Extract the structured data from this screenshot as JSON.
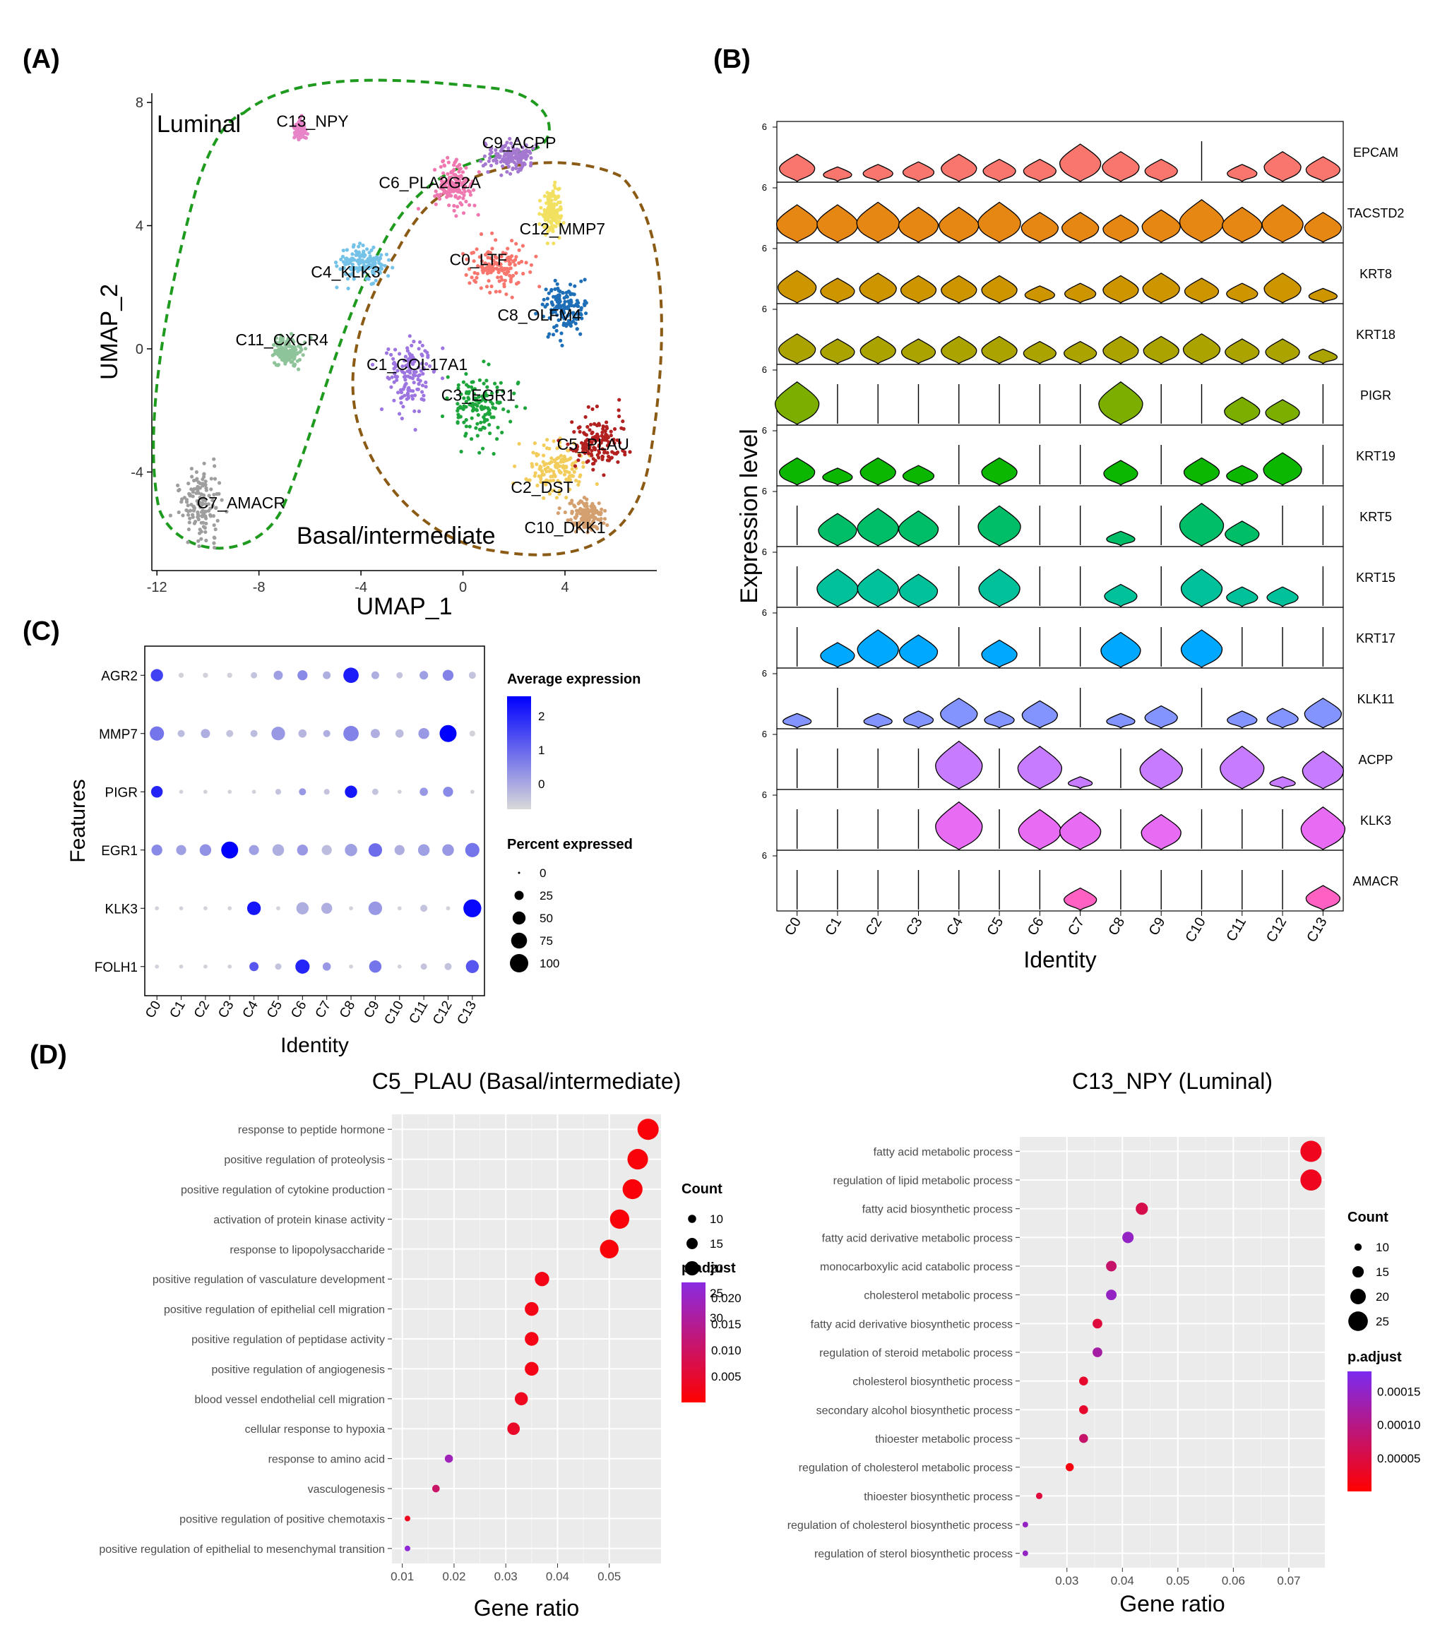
{
  "panel_labels": [
    "(A)",
    "(B)",
    "(C)",
    "(D)"
  ],
  "chart_data": [
    {
      "id": "A",
      "type": "scatter",
      "xlabel": "UMAP_1",
      "ylabel": "UMAP_2",
      "xlim": [
        -12.2,
        7.6
      ],
      "ylim": [
        -7.2,
        8.3
      ],
      "xticks": [
        -12,
        -8,
        -4,
        0,
        4
      ],
      "yticks": [
        -4,
        0,
        4,
        8
      ],
      "region_labels": [
        "Luminal",
        "Basal/intermediate"
      ],
      "clusters": [
        {
          "name": "C0_LTF",
          "color": "#F8766D",
          "label_color": "#E86A1A",
          "center": [
            1.3,
            2.7
          ],
          "spread": [
            1.3,
            1.0
          ],
          "label_at": [
            0.6,
            2.9
          ]
        },
        {
          "name": "C1_COL17A1",
          "color": "#9D75E0",
          "center": [
            -2.1,
            -0.9
          ],
          "spread": [
            1.0,
            1.4
          ],
          "label_at": [
            -1.8,
            -0.5
          ]
        },
        {
          "name": "C2_DST",
          "color": "#F2CD5C",
          "center": [
            3.6,
            -3.9
          ],
          "spread": [
            1.3,
            0.9
          ],
          "label_at": [
            3.1,
            -4.5
          ]
        },
        {
          "name": "C3_EGR1",
          "color": "#1EA63C",
          "center": [
            0.6,
            -1.9
          ],
          "spread": [
            1.3,
            1.2
          ],
          "label_at": [
            0.6,
            -1.5
          ]
        },
        {
          "name": "C4_KLK3",
          "color": "#75C2E8",
          "center": [
            -3.9,
            2.8
          ],
          "spread": [
            1.1,
            0.6
          ],
          "label_at": [
            -4.6,
            2.5
          ]
        },
        {
          "name": "C5_PLAU",
          "color": "#B22020",
          "center": [
            5.3,
            -3.0
          ],
          "spread": [
            1.2,
            0.9
          ],
          "label_at": [
            5.1,
            -3.1
          ]
        },
        {
          "name": "C6_PLA2G2A",
          "color": "#F078B0",
          "center": [
            -0.3,
            5.3
          ],
          "spread": [
            0.9,
            0.8
          ],
          "label_at": [
            -1.3,
            5.4
          ]
        },
        {
          "name": "C7_AMACR",
          "color": "#9E9E9E",
          "center": [
            -10.3,
            -5.0
          ],
          "spread": [
            0.9,
            1.3
          ],
          "label_at": [
            -8.7,
            -5.0
          ]
        },
        {
          "name": "C8_OLFM4",
          "color": "#1E6FB8",
          "center": [
            4.0,
            1.3
          ],
          "spread": [
            0.9,
            0.9
          ],
          "label_at": [
            3.0,
            1.1
          ]
        },
        {
          "name": "C9_ACPP",
          "color": "#A478D0",
          "center": [
            1.8,
            6.2
          ],
          "spread": [
            1.2,
            0.5
          ],
          "label_at": [
            2.2,
            6.7
          ]
        },
        {
          "name": "C10_DKK1",
          "color": "#D4A070",
          "center": [
            4.8,
            -5.4
          ],
          "spread": [
            0.8,
            0.5
          ],
          "label_at": [
            4.0,
            -5.8
          ]
        },
        {
          "name": "C11_CXCR4",
          "color": "#8FC49A",
          "center": [
            -6.9,
            -0.1
          ],
          "spread": [
            0.6,
            0.5
          ],
          "label_at": [
            -7.1,
            0.3
          ]
        },
        {
          "name": "C12_MMP7",
          "color": "#F2E060",
          "center": [
            3.5,
            4.5
          ],
          "spread": [
            0.4,
            0.8
          ],
          "label_at": [
            3.9,
            3.9
          ]
        },
        {
          "name": "C13_NPY",
          "color": "#E884C8",
          "center": [
            -6.4,
            7.1
          ],
          "spread": [
            0.2,
            0.3
          ],
          "label_at": [
            -5.9,
            7.4
          ]
        }
      ]
    },
    {
      "id": "B",
      "type": "violin",
      "ylabel": "Expression level",
      "xlabel": "Identity",
      "y_tick": "6",
      "categories": [
        "C0",
        "C1",
        "C2",
        "C3",
        "C4",
        "C5",
        "C6",
        "C7",
        "C8",
        "C9",
        "C10",
        "C11",
        "C12",
        "C13"
      ],
      "genes": [
        {
          "name": "EPCAM",
          "color": "#F8766D",
          "values": [
            0.55,
            0.3,
            0.35,
            0.4,
            0.55,
            0.45,
            0.45,
            0.75,
            0.6,
            0.45,
            0.0,
            0.35,
            0.6,
            0.5
          ]
        },
        {
          "name": "TACSTD2",
          "color": "#E68613",
          "values": [
            0.75,
            0.75,
            0.8,
            0.7,
            0.7,
            0.8,
            0.6,
            0.6,
            0.55,
            0.65,
            0.85,
            0.7,
            0.75,
            0.6
          ]
        },
        {
          "name": "KRT8",
          "color": "#CD9600",
          "values": [
            0.65,
            0.5,
            0.6,
            0.55,
            0.55,
            0.55,
            0.35,
            0.4,
            0.55,
            0.6,
            0.5,
            0.4,
            0.6,
            0.3
          ]
        },
        {
          "name": "KRT18",
          "color": "#ABA300",
          "values": [
            0.6,
            0.5,
            0.55,
            0.5,
            0.55,
            0.55,
            0.45,
            0.45,
            0.55,
            0.55,
            0.6,
            0.5,
            0.5,
            0.3
          ]
        },
        {
          "name": "PIGR",
          "color": "#7CAE00",
          "values": [
            0.85,
            0.0,
            0.0,
            0.0,
            0.0,
            0.0,
            0.0,
            0.0,
            0.85,
            0.0,
            0.0,
            0.55,
            0.5,
            0.0
          ]
        },
        {
          "name": "KRT19",
          "color": "#0CB702",
          "values": [
            0.55,
            0.35,
            0.55,
            0.4,
            0.0,
            0.55,
            0.0,
            0.0,
            0.5,
            0.0,
            0.55,
            0.4,
            0.65,
            0.0
          ]
        },
        {
          "name": "KRT5",
          "color": "#00BE67",
          "values": [
            0.0,
            0.65,
            0.75,
            0.7,
            0.0,
            0.8,
            0.0,
            0.0,
            0.3,
            0.0,
            0.85,
            0.5,
            0.0,
            0.0
          ]
        },
        {
          "name": "KRT15",
          "color": "#00C19A",
          "values": [
            0.0,
            0.75,
            0.75,
            0.65,
            0.0,
            0.75,
            0.0,
            0.0,
            0.45,
            0.0,
            0.75,
            0.4,
            0.4,
            0.0
          ]
        },
        {
          "name": "KRT17",
          "color": "#00A9FF",
          "values": [
            0.0,
            0.5,
            0.75,
            0.65,
            0.0,
            0.55,
            0.0,
            0.0,
            0.7,
            0.0,
            0.75,
            0.0,
            0.0,
            0.0
          ]
        },
        {
          "name": "KLK11",
          "color": "#8494FF",
          "values": [
            0.3,
            0.0,
            0.3,
            0.35,
            0.6,
            0.35,
            0.55,
            0.0,
            0.3,
            0.45,
            0.0,
            0.35,
            0.4,
            0.6
          ]
        },
        {
          "name": "ACPP",
          "color": "#C77CFF",
          "values": [
            0.0,
            0.0,
            0.0,
            0.0,
            0.95,
            0.0,
            0.85,
            0.15,
            0.0,
            0.8,
            0.0,
            0.85,
            0.2,
            0.75
          ]
        },
        {
          "name": "KLK3",
          "color": "#E76BF3",
          "values": [
            0.0,
            0.0,
            0.0,
            0.0,
            0.95,
            0.0,
            0.8,
            0.75,
            0.0,
            0.7,
            0.0,
            0.0,
            0.0,
            0.85
          ]
        },
        {
          "name": "AMACR",
          "color": "#FF61C3",
          "values": [
            0.0,
            0.0,
            0.0,
            0.0,
            0.0,
            0.0,
            0.0,
            0.45,
            0.0,
            0.0,
            0.0,
            0.0,
            0.0,
            0.5
          ]
        }
      ]
    },
    {
      "id": "C",
      "type": "dot",
      "ylabel": "Features",
      "xlabel": "Identity",
      "categories": [
        "C0",
        "C1",
        "C2",
        "C3",
        "C4",
        "C5",
        "C6",
        "C7",
        "C8",
        "C9",
        "C10",
        "C11",
        "C12",
        "C13"
      ],
      "features": [
        "AGR2",
        "MMP7",
        "PIGR",
        "EGR1",
        "KLK3",
        "FOLH1"
      ],
      "avg_expression": [
        [
          1.5,
          -0.5,
          -0.5,
          -0.5,
          -0.3,
          0.2,
          0.5,
          0.0,
          2.0,
          0.0,
          -0.3,
          0.2,
          0.6,
          -0.3
        ],
        [
          0.8,
          -0.2,
          0.0,
          -0.3,
          -0.2,
          0.3,
          -0.1,
          0.0,
          0.6,
          0.0,
          -0.2,
          0.3,
          2.4,
          -0.5
        ],
        [
          1.9,
          -0.5,
          -0.5,
          -0.5,
          -0.5,
          -0.3,
          0.3,
          -0.3,
          2.1,
          -0.3,
          -0.5,
          0.3,
          0.5,
          -0.5
        ],
        [
          0.5,
          0.2,
          0.4,
          2.5,
          0.2,
          0.0,
          0.3,
          -0.2,
          0.2,
          0.9,
          0.0,
          0.2,
          0.3,
          0.8
        ],
        [
          -0.5,
          -0.5,
          -0.5,
          -0.5,
          2.1,
          -0.5,
          0.0,
          0.0,
          -0.5,
          0.3,
          -0.5,
          -0.3,
          -0.5,
          2.3
        ],
        [
          -0.5,
          -0.5,
          -0.5,
          -0.5,
          1.2,
          -0.3,
          1.9,
          0.3,
          -0.5,
          0.8,
          -0.5,
          -0.3,
          -0.3,
          1.2
        ]
      ],
      "pct_expressed": [
        [
          45,
          8,
          8,
          8,
          12,
          25,
          30,
          18,
          70,
          18,
          12,
          22,
          35,
          15
        ],
        [
          60,
          15,
          25,
          15,
          15,
          55,
          20,
          15,
          70,
          25,
          20,
          35,
          85,
          10
        ],
        [
          40,
          5,
          5,
          5,
          5,
          10,
          15,
          10,
          45,
          12,
          5,
          20,
          30,
          5
        ],
        [
          35,
          30,
          40,
          85,
          30,
          40,
          35,
          30,
          45,
          55,
          30,
          40,
          40,
          60
        ],
        [
          5,
          5,
          5,
          5,
          55,
          5,
          45,
          35,
          5,
          55,
          5,
          15,
          5,
          95
        ],
        [
          5,
          5,
          5,
          5,
          25,
          12,
          60,
          20,
          5,
          45,
          5,
          12,
          15,
          50
        ]
      ],
      "color_legend": {
        "title": "Average expression",
        "ticks": [
          "2",
          "1",
          "0"
        ],
        "low": "#D9D9D9",
        "high": "#0000FF"
      },
      "size_legend": {
        "title": "Percent expressed",
        "labels": [
          "0",
          "25",
          "50",
          "75",
          "100"
        ]
      }
    },
    {
      "id": "D1",
      "type": "dot",
      "title": "C5_PLAU (Basal/intermediate)",
      "xlabel": "Gene ratio",
      "xlim": [
        0.008,
        0.06
      ],
      "xticks": [
        0.01,
        0.02,
        0.03,
        0.04,
        0.05
      ],
      "xtick_labels": [
        "0.01",
        "0.02",
        "0.03",
        "0.04",
        "0.05"
      ],
      "terms": [
        {
          "term": "response to peptide hormone",
          "ratio": 0.0575,
          "count": 31,
          "padj": 0.001
        },
        {
          "term": "positive regulation of proteolysis",
          "ratio": 0.0555,
          "count": 30,
          "padj": 0.001
        },
        {
          "term": "positive regulation of cytokine production",
          "ratio": 0.0545,
          "count": 29,
          "padj": 0.001
        },
        {
          "term": "activation of protein kinase activity",
          "ratio": 0.052,
          "count": 28,
          "padj": 0.001
        },
        {
          "term": "response to lipopolysaccharide",
          "ratio": 0.05,
          "count": 27,
          "padj": 0.001
        },
        {
          "term": "positive regulation of vasculature development",
          "ratio": 0.037,
          "count": 20,
          "padj": 0.002
        },
        {
          "term": "positive regulation of epithelial cell migration",
          "ratio": 0.035,
          "count": 19,
          "padj": 0.002
        },
        {
          "term": "positive regulation of peptidase activity",
          "ratio": 0.035,
          "count": 19,
          "padj": 0.002
        },
        {
          "term": "positive regulation of angiogenesis",
          "ratio": 0.035,
          "count": 19,
          "padj": 0.002
        },
        {
          "term": "blood vessel endothelial cell migration",
          "ratio": 0.033,
          "count": 18,
          "padj": 0.003
        },
        {
          "term": "cellular response to hypoxia",
          "ratio": 0.0315,
          "count": 17,
          "padj": 0.004
        },
        {
          "term": "response to amino acid",
          "ratio": 0.019,
          "count": 10,
          "padj": 0.018
        },
        {
          "term": "vasculogenesis",
          "ratio": 0.0165,
          "count": 9,
          "padj": 0.01
        },
        {
          "term": "positive regulation of positive chemotaxis",
          "ratio": 0.011,
          "count": 6,
          "padj": 0.003
        },
        {
          "term": "positive regulation of epithelial to mesenchymal transition",
          "ratio": 0.011,
          "count": 6,
          "padj": 0.021
        }
      ],
      "count_legend": {
        "title": "Count",
        "values": [
          10,
          15,
          20,
          25,
          30
        ]
      },
      "padj_legend": {
        "title": "p.adjust",
        "ticks": [
          "0.020",
          "0.015",
          "0.010",
          "0.005"
        ],
        "low_color": "#FF0000",
        "high_color": "#8A2BE2"
      }
    },
    {
      "id": "D2",
      "type": "dot",
      "title": "C13_NPY (Luminal)",
      "xlabel": "Gene ratio",
      "xlim": [
        0.0215,
        0.0765
      ],
      "xticks": [
        0.03,
        0.04,
        0.05,
        0.06,
        0.07
      ],
      "xtick_labels": [
        "0.03",
        "0.04",
        "0.05",
        "0.06",
        "0.07"
      ],
      "terms": [
        {
          "term": "fatty acid metabolic process",
          "ratio": 0.074,
          "count": 27,
          "padj": 2e-05
        },
        {
          "term": "regulation of lipid metabolic process",
          "ratio": 0.074,
          "count": 27,
          "padj": 2e-05
        },
        {
          "term": "fatty acid biosynthetic process",
          "ratio": 0.0435,
          "count": 16,
          "padj": 5e-05
        },
        {
          "term": "fatty acid derivative metabolic process",
          "ratio": 0.041,
          "count": 15,
          "padj": 0.00013
        },
        {
          "term": "monocarboxylic acid catabolic process",
          "ratio": 0.038,
          "count": 14,
          "padj": 7e-05
        },
        {
          "term": "cholesterol metabolic process",
          "ratio": 0.038,
          "count": 14,
          "padj": 0.00013
        },
        {
          "term": "fatty acid derivative biosynthetic process",
          "ratio": 0.0355,
          "count": 13,
          "padj": 4e-05
        },
        {
          "term": "regulation of steroid metabolic process",
          "ratio": 0.0355,
          "count": 13,
          "padj": 0.00011
        },
        {
          "term": "cholesterol biosynthetic process",
          "ratio": 0.033,
          "count": 12,
          "padj": 3e-05
        },
        {
          "term": "secondary alcohol biosynthetic process",
          "ratio": 0.033,
          "count": 12,
          "padj": 3e-05
        },
        {
          "term": "thioester metabolic process",
          "ratio": 0.033,
          "count": 12,
          "padj": 7e-05
        },
        {
          "term": "regulation of cholesterol metabolic process",
          "ratio": 0.0305,
          "count": 11,
          "padj": 1e-05
        },
        {
          "term": "thioester biosynthetic process",
          "ratio": 0.025,
          "count": 9,
          "padj": 4e-05
        },
        {
          "term": "regulation of cholesterol biosynthetic process",
          "ratio": 0.0225,
          "count": 8,
          "padj": 0.00013
        },
        {
          "term": "regulation of sterol biosynthetic process",
          "ratio": 0.0225,
          "count": 8,
          "padj": 0.00013
        }
      ],
      "count_legend": {
        "title": "Count",
        "values": [
          10,
          15,
          20,
          25
        ]
      },
      "padj_legend": {
        "title": "p.adjust",
        "ticks": [
          "0.00015",
          "0.00010",
          "0.00005"
        ],
        "low_color": "#FF0000",
        "high_color": "#7B2BF0"
      }
    }
  ]
}
